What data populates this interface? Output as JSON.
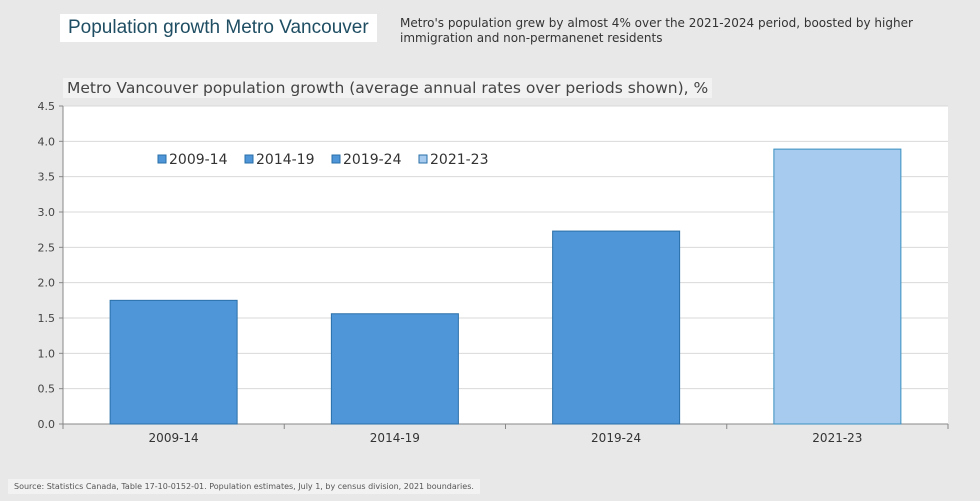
{
  "header": {
    "title": "Population growth Metro Vancouver",
    "subtitle": "Metro's population grew by almost 4% over the 2021-2024 period, boosted by higher immigration and non-permanenet residents"
  },
  "source": "Source:  Statistics Canada, Table 17-10-0152-01.  Population estimates, July 1, by census division, 2021 boundaries.",
  "chart_data": {
    "type": "bar",
    "title": "Metro Vancouver population growth (average annual rates over periods shown), %",
    "categories": [
      "2009-14",
      "2014-19",
      "2019-24",
      "2021-23"
    ],
    "values": [
      1.75,
      1.56,
      2.73,
      3.89
    ],
    "colors": [
      "#4f96d9",
      "#4f96d9",
      "#4f96d9",
      "#a7cbee"
    ],
    "legend": [
      "2009-14",
      "2014-19",
      "2019-24",
      "2021-23"
    ],
    "legend_placement": "top-left",
    "ylim": [
      0,
      4.5
    ],
    "yticks": [
      "0.0",
      "0.5",
      "1.0",
      "1.5",
      "2.0",
      "2.5",
      "3.0",
      "3.5",
      "4.0",
      "4.5"
    ],
    "grid": true
  }
}
